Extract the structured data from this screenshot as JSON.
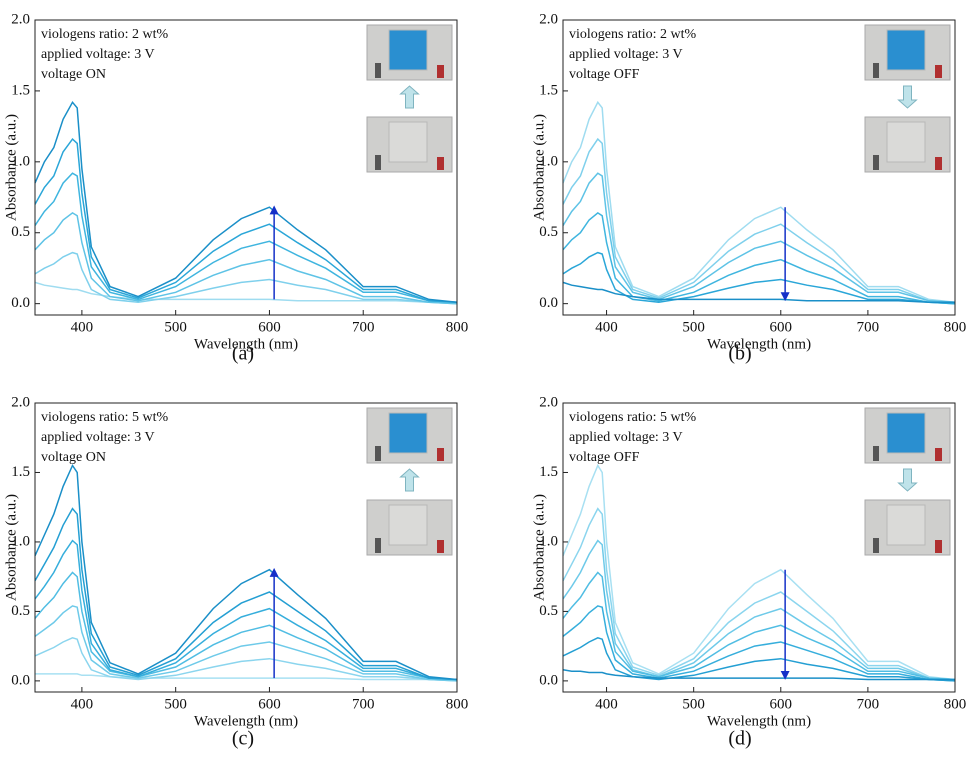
{
  "chart_data": [
    {
      "type": "line",
      "label": "(a)",
      "x_label": "Wavelength (nm)",
      "y_label": "Absorbance (a.u.)",
      "annotations": [
        "viologens ratio: 2 wt%",
        "applied voltage: 3 V",
        "voltage ON"
      ],
      "xlim": [
        350,
        800
      ],
      "xticks": [
        400,
        500,
        600,
        700,
        800
      ],
      "ylim": [
        -0.08,
        2.0
      ],
      "yticks": [
        {
          "value": 0,
          "label": "0.0"
        },
        0.5,
        {
          "value": 1,
          "label": "1.0"
        },
        1.5,
        {
          "value": 2,
          "label": "2.0"
        }
      ],
      "x": [
        350,
        360,
        370,
        380,
        390,
        395,
        400,
        410,
        430,
        460,
        500,
        540,
        570,
        600,
        630,
        660,
        700,
        735,
        770,
        800
      ],
      "series": [
        {
          "color": "#9fdcf0",
          "values": [
            0.15,
            0.13,
            0.12,
            0.11,
            0.1,
            0.1,
            0.09,
            0.07,
            0.05,
            0.03,
            0.03,
            0.03,
            0.03,
            0.03,
            0.02,
            0.02,
            0.02,
            0.02,
            0.01,
            0.01
          ]
        },
        {
          "color": "#7fd0ec",
          "values": [
            0.21,
            0.25,
            0.28,
            0.33,
            0.36,
            0.35,
            0.24,
            0.1,
            0.03,
            0.01,
            0.05,
            0.11,
            0.15,
            0.17,
            0.13,
            0.1,
            0.03,
            0.03,
            0.01,
            0
          ]
        },
        {
          "color": "#5ec3e6",
          "values": [
            0.38,
            0.45,
            0.5,
            0.59,
            0.64,
            0.62,
            0.43,
            0.18,
            0.05,
            0.02,
            0.08,
            0.2,
            0.27,
            0.31,
            0.23,
            0.17,
            0.05,
            0.05,
            0.01,
            0
          ]
        },
        {
          "color": "#3fb5df",
          "values": [
            0.55,
            0.65,
            0.72,
            0.85,
            0.92,
            0.9,
            0.62,
            0.26,
            0.08,
            0.03,
            0.12,
            0.29,
            0.39,
            0.44,
            0.34,
            0.25,
            0.08,
            0.08,
            0.02,
            0.01
          ]
        },
        {
          "color": "#2aa6d8",
          "values": [
            0.7,
            0.82,
            0.9,
            1.07,
            1.16,
            1.13,
            0.78,
            0.33,
            0.1,
            0.04,
            0.15,
            0.37,
            0.49,
            0.56,
            0.43,
            0.31,
            0.1,
            0.1,
            0.02,
            0.01
          ]
        },
        {
          "color": "#1a8fc8",
          "values": [
            0.85,
            1.0,
            1.1,
            1.3,
            1.42,
            1.38,
            0.95,
            0.4,
            0.12,
            0.05,
            0.18,
            0.45,
            0.6,
            0.68,
            0.52,
            0.38,
            0.12,
            0.12,
            0.03,
            0.01
          ]
        }
      ]
    },
    {
      "type": "line",
      "label": "(b)",
      "x_label": "Wavelength (nm)",
      "y_label": "Absorbance (a.u.)",
      "annotations": [
        "viologens ratio: 2 wt%",
        "applied voltage: 3 V",
        "voltage OFF"
      ],
      "xlim": [
        350,
        800
      ],
      "xticks": [
        400,
        500,
        600,
        700,
        800
      ],
      "ylim": [
        -0.08,
        2.0
      ],
      "yticks": [
        {
          "value": 0,
          "label": "0.0"
        },
        0.5,
        {
          "value": 1,
          "label": "1.0"
        },
        1.5,
        {
          "value": 2,
          "label": "2.0"
        }
      ],
      "x": [
        350,
        360,
        370,
        380,
        390,
        395,
        400,
        410,
        430,
        460,
        500,
        540,
        570,
        600,
        630,
        660,
        700,
        735,
        770,
        800
      ],
      "series": [
        {
          "color": "#9fdcf0",
          "values": [
            0.85,
            1.0,
            1.1,
            1.3,
            1.42,
            1.38,
            0.95,
            0.4,
            0.12,
            0.05,
            0.18,
            0.45,
            0.6,
            0.68,
            0.52,
            0.38,
            0.12,
            0.12,
            0.03,
            0.01
          ]
        },
        {
          "color": "#7fd0ec",
          "values": [
            0.7,
            0.82,
            0.9,
            1.07,
            1.16,
            1.13,
            0.78,
            0.33,
            0.1,
            0.04,
            0.15,
            0.37,
            0.49,
            0.56,
            0.43,
            0.31,
            0.1,
            0.1,
            0.02,
            0.01
          ]
        },
        {
          "color": "#5ec3e6",
          "values": [
            0.55,
            0.65,
            0.72,
            0.85,
            0.92,
            0.9,
            0.62,
            0.26,
            0.08,
            0.03,
            0.12,
            0.29,
            0.39,
            0.44,
            0.34,
            0.25,
            0.08,
            0.08,
            0.02,
            0.01
          ]
        },
        {
          "color": "#3fb5df",
          "values": [
            0.38,
            0.45,
            0.5,
            0.59,
            0.64,
            0.62,
            0.43,
            0.18,
            0.05,
            0.02,
            0.08,
            0.2,
            0.27,
            0.31,
            0.23,
            0.17,
            0.05,
            0.05,
            0.01,
            0
          ]
        },
        {
          "color": "#2aa6d8",
          "values": [
            0.21,
            0.25,
            0.28,
            0.33,
            0.36,
            0.35,
            0.24,
            0.1,
            0.03,
            0.01,
            0.05,
            0.11,
            0.15,
            0.17,
            0.13,
            0.1,
            0.03,
            0.03,
            0.01,
            0
          ]
        },
        {
          "color": "#1a8fc8",
          "values": [
            0.15,
            0.13,
            0.12,
            0.11,
            0.1,
            0.1,
            0.09,
            0.07,
            0.05,
            0.03,
            0.03,
            0.03,
            0.03,
            0.03,
            0.02,
            0.02,
            0.02,
            0.02,
            0.01,
            0.01
          ]
        }
      ]
    },
    {
      "type": "line",
      "label": "(c)",
      "x_label": "Wavelength (nm)",
      "y_label": "Absorbance (a.u.)",
      "annotations": [
        "viologens ratio: 5 wt%",
        "applied voltage: 3 V",
        "voltage ON"
      ],
      "xlim": [
        350,
        800
      ],
      "xticks": [
        400,
        500,
        600,
        700,
        800
      ],
      "ylim": [
        -0.08,
        2.0
      ],
      "yticks": [
        {
          "value": 0,
          "label": "0.0"
        },
        0.5,
        {
          "value": 1,
          "label": "1.0"
        },
        1.5,
        {
          "value": 2,
          "label": "2.0"
        }
      ],
      "x": [
        350,
        360,
        370,
        380,
        390,
        395,
        400,
        410,
        430,
        460,
        500,
        540,
        570,
        600,
        630,
        660,
        700,
        735,
        770,
        800
      ],
      "series": [
        {
          "color": "#a8e0f2",
          "values": [
            0.05,
            0.05,
            0.05,
            0.05,
            0.05,
            0.05,
            0.04,
            0.04,
            0.03,
            0.02,
            0.02,
            0.02,
            0.02,
            0.02,
            0.02,
            0.02,
            0.01,
            0.01,
            0.01,
            0.01
          ]
        },
        {
          "color": "#8bd5ee",
          "values": [
            0.18,
            0.21,
            0.24,
            0.28,
            0.31,
            0.3,
            0.2,
            0.08,
            0.03,
            0.01,
            0.04,
            0.1,
            0.14,
            0.16,
            0.12,
            0.09,
            0.03,
            0.03,
            0.01,
            0
          ]
        },
        {
          "color": "#6ecae9",
          "values": [
            0.32,
            0.37,
            0.42,
            0.49,
            0.54,
            0.53,
            0.35,
            0.15,
            0.05,
            0.02,
            0.07,
            0.18,
            0.25,
            0.28,
            0.22,
            0.16,
            0.05,
            0.05,
            0.01,
            0
          ]
        },
        {
          "color": "#50bde3",
          "values": [
            0.45,
            0.53,
            0.6,
            0.7,
            0.78,
            0.75,
            0.5,
            0.21,
            0.07,
            0.03,
            0.1,
            0.26,
            0.35,
            0.4,
            0.31,
            0.23,
            0.07,
            0.07,
            0.02,
            0.01
          ]
        },
        {
          "color": "#36aedc",
          "values": [
            0.59,
            0.68,
            0.78,
            0.91,
            1.01,
            0.98,
            0.65,
            0.27,
            0.08,
            0.03,
            0.13,
            0.34,
            0.46,
            0.52,
            0.4,
            0.29,
            0.09,
            0.09,
            0.02,
            0.01
          ]
        },
        {
          "color": "#249fd3",
          "values": [
            0.72,
            0.84,
            0.96,
            1.12,
            1.24,
            1.2,
            0.8,
            0.34,
            0.1,
            0.04,
            0.16,
            0.42,
            0.56,
            0.64,
            0.5,
            0.36,
            0.11,
            0.11,
            0.02,
            0.01
          ]
        },
        {
          "color": "#1a8fc8",
          "values": [
            0.9,
            1.05,
            1.2,
            1.4,
            1.55,
            1.5,
            1.0,
            0.42,
            0.13,
            0.05,
            0.2,
            0.52,
            0.7,
            0.8,
            0.62,
            0.45,
            0.14,
            0.14,
            0.03,
            0.01
          ]
        }
      ]
    },
    {
      "type": "line",
      "label": "(d)",
      "x_label": "Wavelength (nm)",
      "y_label": "Absorbance (a.u.)",
      "annotations": [
        "viologens ratio: 5 wt%",
        "applied voltage: 3 V",
        "voltage OFF"
      ],
      "xlim": [
        350,
        800
      ],
      "xticks": [
        400,
        500,
        600,
        700,
        800
      ],
      "ylim": [
        -0.08,
        2.0
      ],
      "yticks": [
        {
          "value": 0,
          "label": "0.0"
        },
        0.5,
        {
          "value": 1,
          "label": "1.0"
        },
        1.5,
        {
          "value": 2,
          "label": "2.0"
        }
      ],
      "x": [
        350,
        360,
        370,
        380,
        390,
        395,
        400,
        410,
        430,
        460,
        500,
        540,
        570,
        600,
        630,
        660,
        700,
        735,
        770,
        800
      ],
      "series": [
        {
          "color": "#a8e0f2",
          "values": [
            0.9,
            1.05,
            1.2,
            1.4,
            1.55,
            1.5,
            1.0,
            0.42,
            0.13,
            0.05,
            0.2,
            0.52,
            0.7,
            0.8,
            0.62,
            0.45,
            0.14,
            0.14,
            0.03,
            0.01
          ]
        },
        {
          "color": "#8bd5ee",
          "values": [
            0.72,
            0.84,
            0.96,
            1.12,
            1.24,
            1.2,
            0.8,
            0.34,
            0.1,
            0.04,
            0.16,
            0.42,
            0.56,
            0.64,
            0.5,
            0.36,
            0.11,
            0.11,
            0.02,
            0.01
          ]
        },
        {
          "color": "#6ecae9",
          "values": [
            0.59,
            0.68,
            0.78,
            0.91,
            1.01,
            0.98,
            0.65,
            0.27,
            0.08,
            0.03,
            0.13,
            0.34,
            0.46,
            0.52,
            0.4,
            0.29,
            0.09,
            0.09,
            0.02,
            0.01
          ]
        },
        {
          "color": "#50bde3",
          "values": [
            0.45,
            0.53,
            0.6,
            0.7,
            0.78,
            0.75,
            0.5,
            0.21,
            0.07,
            0.03,
            0.1,
            0.26,
            0.35,
            0.4,
            0.31,
            0.23,
            0.07,
            0.07,
            0.02,
            0.01
          ]
        },
        {
          "color": "#36aedc",
          "values": [
            0.32,
            0.37,
            0.42,
            0.49,
            0.54,
            0.53,
            0.35,
            0.15,
            0.05,
            0.02,
            0.07,
            0.18,
            0.25,
            0.28,
            0.22,
            0.16,
            0.05,
            0.05,
            0.01,
            0
          ]
        },
        {
          "color": "#249fd3",
          "values": [
            0.18,
            0.21,
            0.24,
            0.28,
            0.31,
            0.3,
            0.2,
            0.08,
            0.03,
            0.01,
            0.04,
            0.1,
            0.14,
            0.16,
            0.12,
            0.09,
            0.03,
            0.03,
            0.01,
            0
          ]
        },
        {
          "color": "#1a8fc8",
          "values": [
            0.08,
            0.07,
            0.07,
            0.06,
            0.06,
            0.06,
            0.05,
            0.04,
            0.03,
            0.02,
            0.02,
            0.02,
            0.02,
            0.02,
            0.02,
            0.02,
            0.01,
            0.01,
            0.01,
            0.01
          ]
        }
      ]
    }
  ]
}
